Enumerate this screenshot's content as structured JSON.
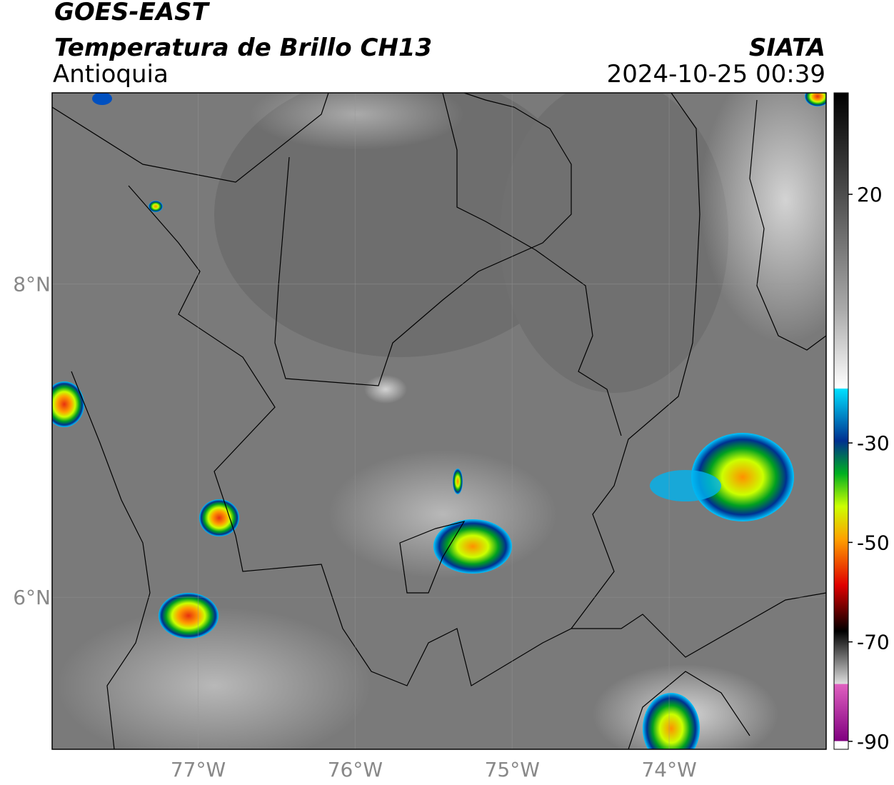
{
  "header": {
    "title": "GOES-EAST",
    "subtitle": "Temperatura de Brillo CH13",
    "region": "Antioquia",
    "source": "SIATA",
    "datetime": "2024-10-25 00:39"
  },
  "map": {
    "xlim": [
      -77.93,
      -73.0
    ],
    "ylim": [
      5.03,
      9.22
    ],
    "xticks": [
      {
        "value": -77,
        "label": "77°W"
      },
      {
        "value": -76,
        "label": "76°W"
      },
      {
        "value": -75,
        "label": "75°W"
      },
      {
        "value": -74,
        "label": "74°W"
      }
    ],
    "yticks": [
      {
        "value": 8,
        "label": "8°N"
      },
      {
        "value": 6,
        "label": "6°N"
      }
    ]
  },
  "colorbar": {
    "lim": [
      -91.6,
      40.4
    ],
    "ticks": [
      20,
      -30,
      -50,
      -70,
      -90
    ]
  }
}
